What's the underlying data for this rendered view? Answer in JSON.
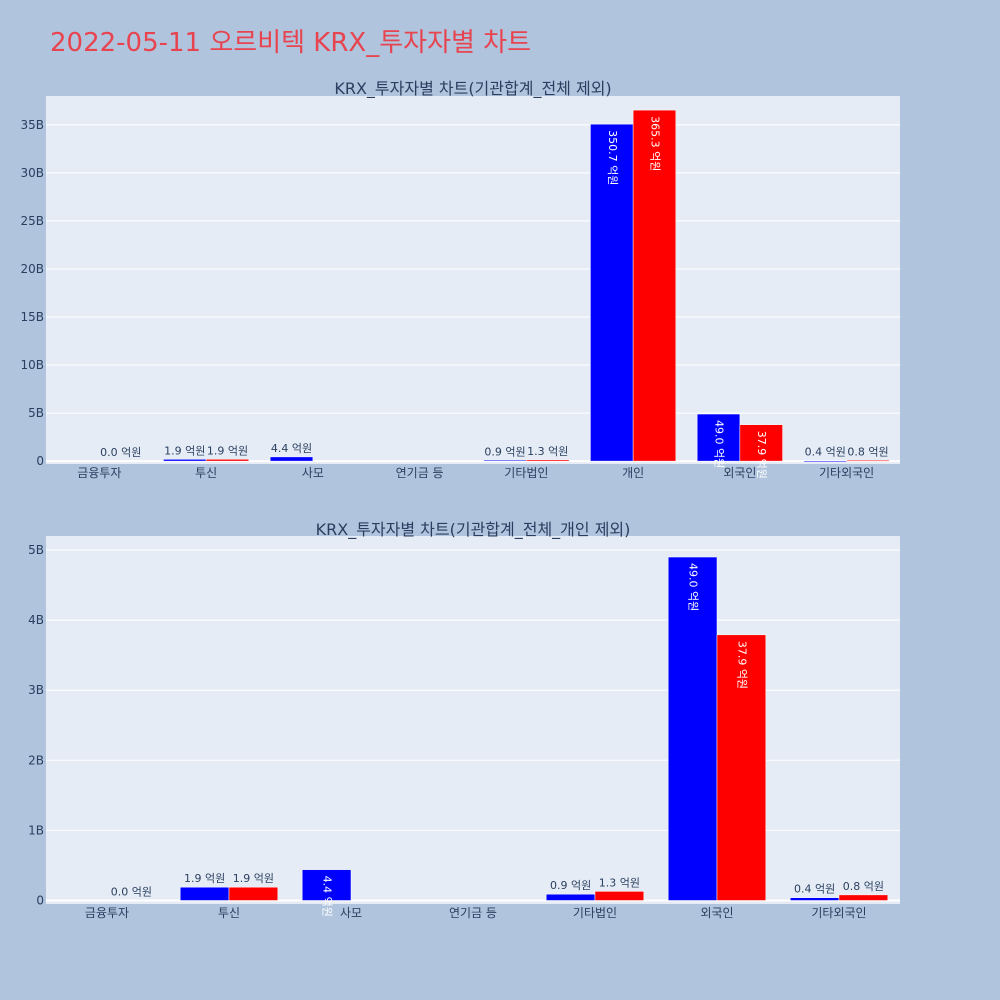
{
  "page": {
    "title": "2022-05-11 오르비텍 KRX_투자자별 차트"
  },
  "colors": {
    "buy": "#0000ff",
    "sell": "#ff0000",
    "plot_bg": "#e5ecf6",
    "page_bg": "#b0c4de",
    "title": "#e8444f"
  },
  "chart_data": [
    {
      "type": "bar",
      "title": "KRX_투자자별 차트(기관합계_전체 제외)",
      "categories": [
        "금융투자",
        "투신",
        "사모",
        "연기금 등",
        "기타법인",
        "개인",
        "외국인",
        "기타외국인"
      ],
      "series": [
        {
          "values": [
            0.0,
            1.9,
            4.4,
            0.0,
            0.9,
            350.7,
            49.0,
            0.4
          ]
        },
        {
          "values": [
            0.0,
            1.9,
            0.0,
            0.0,
            1.3,
            365.3,
            37.9,
            0.8
          ]
        }
      ],
      "labels": [
        [
          null,
          "1.9 억원",
          "4.4 억원",
          null,
          "0.9 억원",
          "350.7 억원",
          "49.0 억원",
          "0.4 억원"
        ],
        [
          "0.0 억원",
          "1.9 억원",
          null,
          null,
          "1.3 억원",
          "365.3 억원",
          "37.9 억원",
          "0.8 억원"
        ]
      ],
      "yticks": [
        "0",
        "5B",
        "10B",
        "15B",
        "20B",
        "25B",
        "30B",
        "35B"
      ],
      "ylim": [
        -3,
        380
      ]
    },
    {
      "type": "bar",
      "title": "KRX_투자자별 차트(기관합계_전체_개인 제외)",
      "categories": [
        "금융투자",
        "투신",
        "사모",
        "연기금 등",
        "기타법인",
        "외국인",
        "기타외국인"
      ],
      "series": [
        {
          "values": [
            0.0,
            1.9,
            4.4,
            0.0,
            0.9,
            49.0,
            0.4
          ]
        },
        {
          "values": [
            0.0,
            1.9,
            0.0,
            0.0,
            1.3,
            37.9,
            0.8
          ]
        }
      ],
      "labels": [
        [
          null,
          "1.9 억원",
          "4.4 억원",
          null,
          "0.9 억원",
          "49.0 억원",
          "0.4 억원"
        ],
        [
          "0.0 억원",
          "1.9 억원",
          null,
          null,
          "1.3 억원",
          "37.9 억원",
          "0.8 억원"
        ]
      ],
      "yticks": [
        "0",
        "1B",
        "2B",
        "3B",
        "4B",
        "5B"
      ],
      "ylim": [
        -0.5,
        52
      ]
    }
  ]
}
